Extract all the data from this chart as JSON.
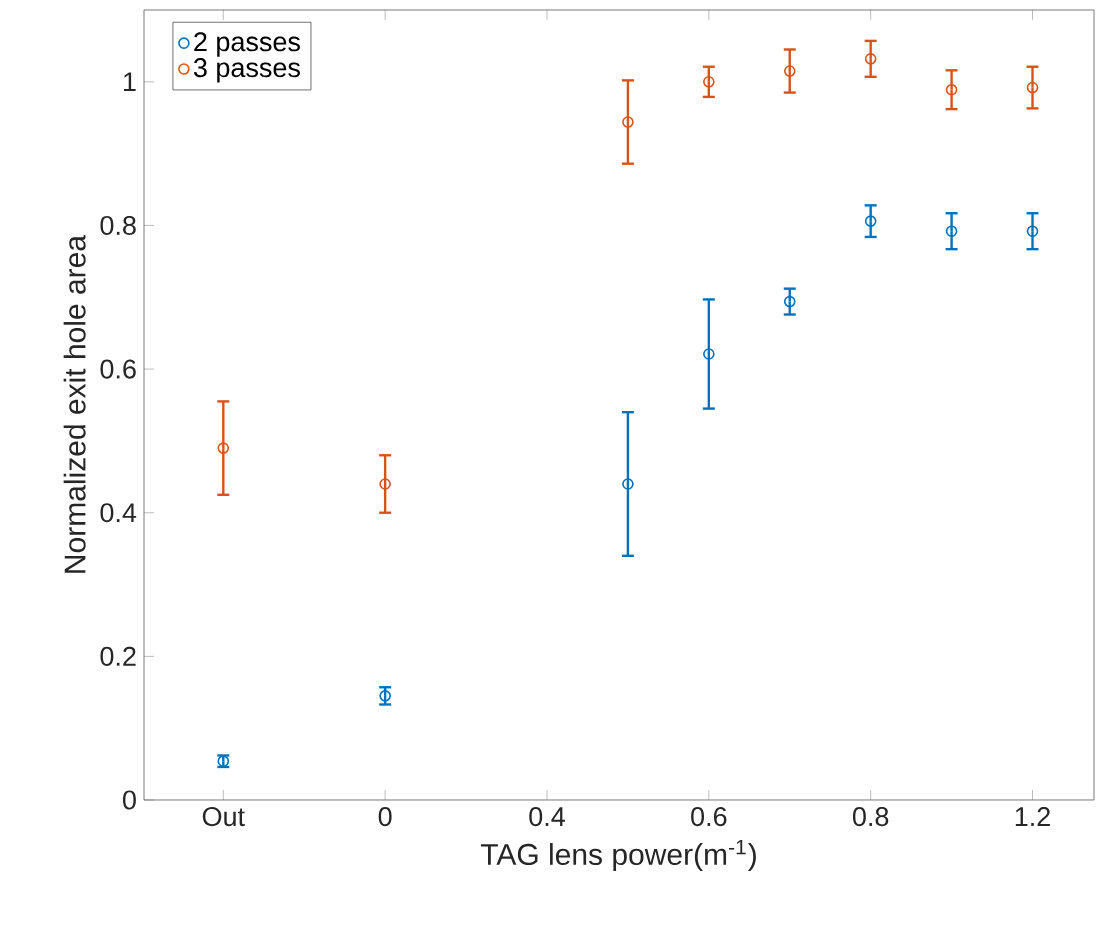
{
  "chart_data": {
    "type": "scatter",
    "xlabel": "TAG lens power(m$^{-1}$)",
    "ylabel": "Normalized exit hole area",
    "categories": [
      "Out",
      null,
      "0",
      null,
      "0.4",
      null,
      "0.6",
      null,
      "0.8",
      null,
      "1.2"
    ],
    "ylim": [
      0,
      1.1
    ],
    "yticks": [
      0,
      0.2,
      0.4,
      0.6,
      0.8,
      1
    ],
    "series": [
      {
        "name": "2 passes",
        "color": "#0072bd",
        "values": [
          0.054,
          null,
          0.145,
          null,
          null,
          0.44,
          0.621,
          0.694,
          0.806,
          0.792,
          0.792
        ],
        "errors": [
          0.008,
          null,
          0.012,
          null,
          null,
          0.1,
          0.076,
          0.018,
          0.022,
          0.025,
          0.025
        ]
      },
      {
        "name": "3 passes",
        "color": "#d95319",
        "values": [
          0.49,
          null,
          0.44,
          null,
          null,
          0.944,
          1.0,
          1.015,
          1.032,
          0.989,
          0.992
        ],
        "errors": [
          0.065,
          null,
          0.04,
          null,
          null,
          0.058,
          0.021,
          0.03,
          0.025,
          0.027,
          0.029
        ]
      }
    ],
    "legend": "top left",
    "marker": "circle",
    "grid": false
  }
}
